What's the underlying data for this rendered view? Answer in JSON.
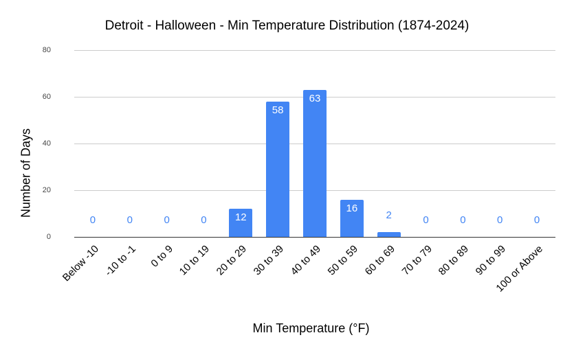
{
  "chart_data": {
    "type": "bar",
    "title": "Detroit - Halloween - Min Temperature Distribution (1874-2024)",
    "xlabel": "Min Temperature (°F)",
    "ylabel": "Number of Days",
    "ylim": [
      0,
      80
    ],
    "yticks": [
      "0",
      "20",
      "40",
      "60",
      "80"
    ],
    "grid": true,
    "legend": "none",
    "bar_color": "#4285f4",
    "categories": [
      "Below -10",
      "-10 to -1",
      "0 to 9",
      "10 to 19",
      "20 to 29",
      "30 to 39",
      "40 to 49",
      "50 to 59",
      "60 to 69",
      "70 to 79",
      "80 to 89",
      "90 to 99",
      "100 or Above"
    ],
    "values": [
      0,
      0,
      0,
      0,
      12,
      58,
      63,
      16,
      2,
      0,
      0,
      0,
      0
    ],
    "data_labels": [
      "0",
      "0",
      "0",
      "0",
      "12",
      "58",
      "63",
      "16",
      "2",
      "0",
      "0",
      "0",
      "0"
    ]
  }
}
